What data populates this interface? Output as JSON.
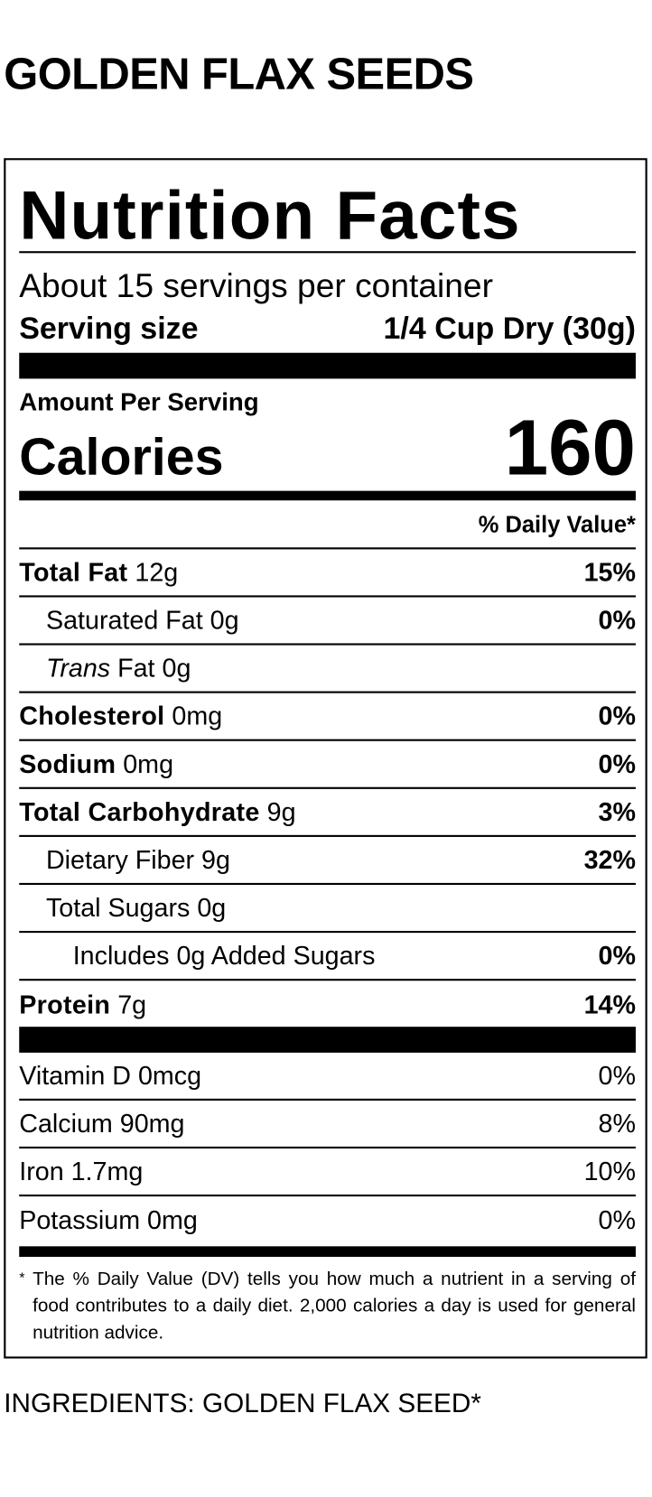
{
  "product_title": "GOLDEN FLAX SEEDS",
  "label": {
    "heading": "Nutrition Facts",
    "servings_per_container": "About 15 servings per container",
    "serving_size_label": "Serving size",
    "serving_size_value": "1/4 Cup Dry (30g)",
    "amount_per_serving": "Amount Per Serving",
    "calories_label": "Calories",
    "calories_value": "160",
    "dv_header": "% Daily Value*",
    "nutrients": [
      {
        "name": "Total Fat",
        "amount": "12g",
        "dv": "15%",
        "bold": true,
        "indent": 0
      },
      {
        "name": "Saturated Fat",
        "amount": "0g",
        "dv": "0%",
        "bold": false,
        "indent": 1
      },
      {
        "name": "Trans",
        "suffix": "Fat",
        "amount": "0g",
        "dv": "",
        "bold": false,
        "indent": 1
      },
      {
        "name": "Cholesterol",
        "amount": "0mg",
        "dv": "0%",
        "bold": true,
        "indent": 0
      },
      {
        "name": "Sodium",
        "amount": "0mg",
        "dv": "0%",
        "bold": true,
        "indent": 0
      },
      {
        "name": "Total Carbohydrate",
        "amount": "9g",
        "dv": "3%",
        "bold": true,
        "indent": 0
      },
      {
        "name": "Dietary Fiber",
        "amount": "9g",
        "dv": "32%",
        "bold": false,
        "indent": 1
      },
      {
        "name": "Total Sugars",
        "amount": "0g",
        "dv": "",
        "bold": false,
        "indent": 1
      },
      {
        "name": "Includes 0g Added Sugars",
        "amount": "",
        "dv": "0%",
        "bold": false,
        "indent": 2
      },
      {
        "name": "Protein",
        "amount": "7g",
        "dv": "14%",
        "bold": true,
        "indent": 0
      }
    ],
    "vitamins": [
      {
        "name": "Vitamin D 0mcg",
        "dv": "0%"
      },
      {
        "name": "Calcium 90mg",
        "dv": "8%"
      },
      {
        "name": "Iron 1.7mg",
        "dv": "10%"
      },
      {
        "name": "Potassium 0mg",
        "dv": "0%"
      }
    ],
    "footnote_marker": "*",
    "footnote": "The % Daily Value (DV) tells you how much a nutrient in a serving of food contributes to a daily diet. 2,000 calories a day is used for general nutrition advice."
  },
  "ingredients": "INGREDIENTS: GOLDEN FLAX SEED*"
}
